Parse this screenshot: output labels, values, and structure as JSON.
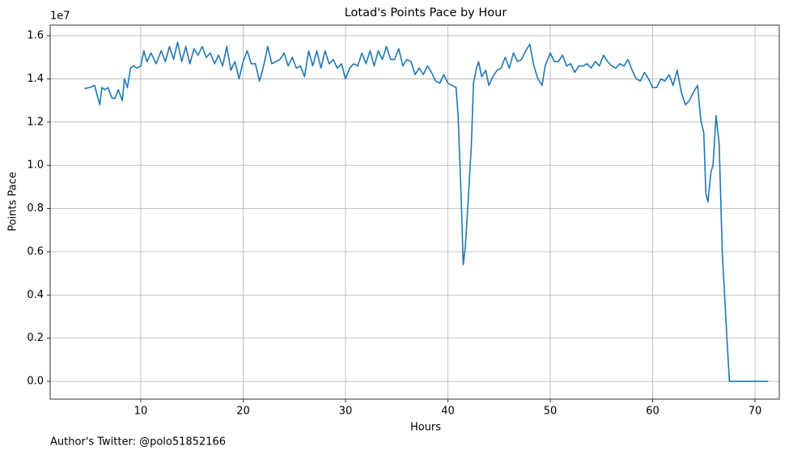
{
  "chart_data": {
    "type": "line",
    "title": "Lotad's Points Pace by Hour",
    "x_label": "Hours",
    "y_label": "Points Pace",
    "y_offset_label": "1e7",
    "footnote": "Author's Twitter: @polo51852166",
    "grid": true,
    "xlim": [
      1.15,
      72.37
    ],
    "ylim": [
      -0.082,
      1.649
    ],
    "xticks": [
      10,
      20,
      30,
      40,
      50,
      60,
      70
    ],
    "yticks": [
      {
        "value": 0,
        "label": "0.0"
      },
      0.2,
      0.4,
      0.6,
      0.8,
      {
        "value": 1,
        "label": "1.0"
      },
      1.2,
      1.4,
      1.6
    ],
    "x": [
      4.5,
      5.0,
      5.5,
      5.7,
      6.0,
      6.2,
      6.5,
      6.8,
      7.2,
      7.5,
      7.8,
      8.2,
      8.4,
      8.7,
      9.0,
      9.3,
      9.6,
      10.0,
      10.3,
      10.6,
      11.0,
      11.5,
      12.0,
      12.4,
      12.8,
      13.2,
      13.6,
      14.0,
      14.4,
      14.8,
      15.2,
      15.6,
      16.0,
      16.4,
      16.8,
      17.2,
      17.6,
      18.0,
      18.4,
      18.8,
      19.2,
      19.6,
      20.0,
      20.4,
      20.8,
      21.2,
      21.6,
      22.0,
      22.4,
      22.8,
      23.2,
      23.6,
      24.0,
      24.4,
      24.8,
      25.2,
      25.6,
      26.0,
      26.4,
      26.8,
      27.2,
      27.6,
      28.0,
      28.4,
      28.8,
      29.2,
      29.6,
      30.0,
      30.4,
      30.8,
      31.2,
      31.6,
      32.0,
      32.4,
      32.8,
      33.2,
      33.6,
      34.0,
      34.4,
      34.8,
      35.2,
      35.6,
      36.0,
      36.4,
      36.8,
      37.2,
      37.6,
      38.0,
      38.4,
      38.8,
      39.2,
      39.6,
      40.0,
      40.4,
      40.8,
      41.0,
      41.3,
      41.5,
      41.7,
      42.0,
      42.3,
      42.5,
      42.8,
      43.0,
      43.3,
      43.7,
      44.0,
      44.4,
      44.8,
      45.2,
      45.6,
      46.0,
      46.4,
      46.8,
      47.2,
      47.6,
      48.0,
      48.4,
      48.8,
      49.2,
      49.5,
      50.0,
      50.4,
      50.8,
      51.2,
      51.6,
      52.0,
      52.4,
      52.8,
      53.2,
      53.6,
      54.0,
      54.4,
      54.8,
      55.2,
      55.6,
      56.0,
      56.4,
      56.8,
      57.2,
      57.6,
      58.0,
      58.4,
      58.8,
      59.2,
      59.6,
      60.0,
      60.4,
      60.8,
      61.2,
      61.6,
      62.0,
      62.4,
      62.8,
      63.2,
      63.6,
      64.0,
      64.4,
      64.7,
      65.0,
      65.2,
      65.4,
      65.7,
      65.9,
      66.2,
      66.5,
      66.8,
      67.2,
      67.5,
      68.0,
      69.0,
      70.0,
      71.3
    ],
    "series": [
      {
        "color": "#1f77b4",
        "values": [
          1.355,
          1.36,
          1.37,
          1.33,
          1.28,
          1.36,
          1.35,
          1.36,
          1.31,
          1.31,
          1.35,
          1.3,
          1.4,
          1.36,
          1.45,
          1.46,
          1.45,
          1.46,
          1.53,
          1.48,
          1.52,
          1.47,
          1.53,
          1.48,
          1.55,
          1.49,
          1.57,
          1.48,
          1.55,
          1.47,
          1.54,
          1.51,
          1.55,
          1.5,
          1.52,
          1.47,
          1.51,
          1.46,
          1.55,
          1.44,
          1.48,
          1.4,
          1.48,
          1.53,
          1.47,
          1.47,
          1.39,
          1.46,
          1.55,
          1.47,
          1.48,
          1.49,
          1.52,
          1.46,
          1.5,
          1.45,
          1.46,
          1.41,
          1.53,
          1.46,
          1.53,
          1.45,
          1.53,
          1.47,
          1.49,
          1.45,
          1.47,
          1.4,
          1.45,
          1.47,
          1.46,
          1.52,
          1.47,
          1.53,
          1.46,
          1.53,
          1.49,
          1.55,
          1.49,
          1.49,
          1.54,
          1.46,
          1.49,
          1.48,
          1.42,
          1.45,
          1.42,
          1.46,
          1.43,
          1.39,
          1.38,
          1.42,
          1.38,
          1.37,
          1.36,
          1.23,
          0.85,
          0.54,
          0.62,
          0.85,
          1.1,
          1.38,
          1.45,
          1.48,
          1.41,
          1.44,
          1.37,
          1.41,
          1.44,
          1.45,
          1.5,
          1.45,
          1.52,
          1.48,
          1.49,
          1.53,
          1.56,
          1.46,
          1.4,
          1.37,
          1.46,
          1.52,
          1.48,
          1.48,
          1.51,
          1.46,
          1.47,
          1.43,
          1.46,
          1.46,
          1.47,
          1.45,
          1.48,
          1.46,
          1.51,
          1.48,
          1.46,
          1.45,
          1.47,
          1.46,
          1.49,
          1.44,
          1.4,
          1.39,
          1.43,
          1.4,
          1.36,
          1.36,
          1.4,
          1.39,
          1.42,
          1.37,
          1.44,
          1.34,
          1.28,
          1.3,
          1.34,
          1.37,
          1.21,
          1.15,
          0.87,
          0.83,
          0.97,
          1.0,
          1.23,
          1.1,
          0.6,
          0.25,
          0.0,
          0.0,
          0.0,
          0.0,
          0.0
        ]
      }
    ]
  }
}
